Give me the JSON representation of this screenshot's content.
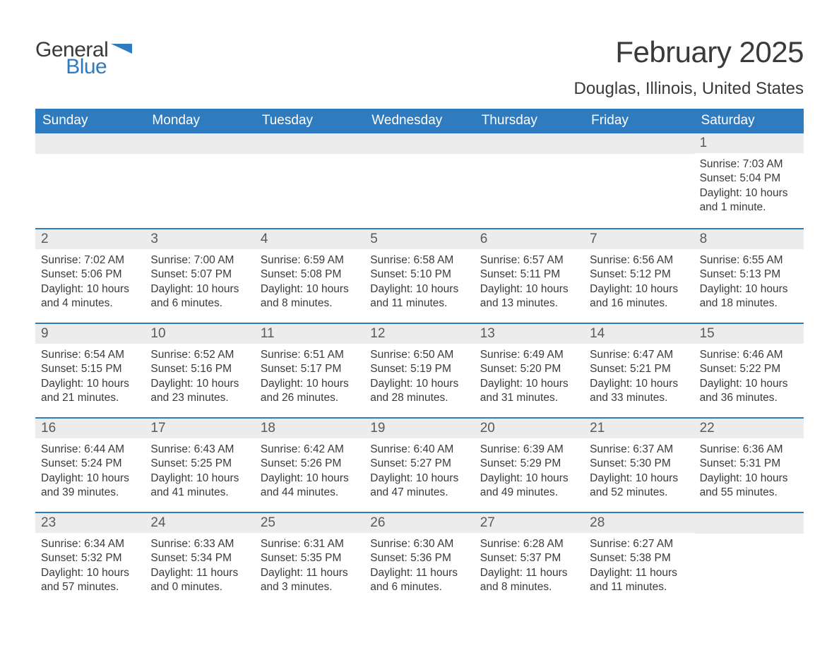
{
  "logo": {
    "line1": "General",
    "line2": "Blue",
    "icon_color": "#2f7bbf"
  },
  "title": "February 2025",
  "subtitle": "Douglas, Illinois, United States",
  "colors": {
    "header_bg": "#2f7bbf",
    "header_text": "#ffffff",
    "daynum_bg": "#ececec",
    "border": "#2f7bbf",
    "body_text": "#3a3a3a"
  },
  "weekdays": [
    "Sunday",
    "Monday",
    "Tuesday",
    "Wednesday",
    "Thursday",
    "Friday",
    "Saturday"
  ],
  "weeks": [
    [
      null,
      null,
      null,
      null,
      null,
      null,
      {
        "n": "1",
        "sunrise": "Sunrise: 7:03 AM",
        "sunset": "Sunset: 5:04 PM",
        "daylight": "Daylight: 10 hours and 1 minute."
      }
    ],
    [
      {
        "n": "2",
        "sunrise": "Sunrise: 7:02 AM",
        "sunset": "Sunset: 5:06 PM",
        "daylight": "Daylight: 10 hours and 4 minutes."
      },
      {
        "n": "3",
        "sunrise": "Sunrise: 7:00 AM",
        "sunset": "Sunset: 5:07 PM",
        "daylight": "Daylight: 10 hours and 6 minutes."
      },
      {
        "n": "4",
        "sunrise": "Sunrise: 6:59 AM",
        "sunset": "Sunset: 5:08 PM",
        "daylight": "Daylight: 10 hours and 8 minutes."
      },
      {
        "n": "5",
        "sunrise": "Sunrise: 6:58 AM",
        "sunset": "Sunset: 5:10 PM",
        "daylight": "Daylight: 10 hours and 11 minutes."
      },
      {
        "n": "6",
        "sunrise": "Sunrise: 6:57 AM",
        "sunset": "Sunset: 5:11 PM",
        "daylight": "Daylight: 10 hours and 13 minutes."
      },
      {
        "n": "7",
        "sunrise": "Sunrise: 6:56 AM",
        "sunset": "Sunset: 5:12 PM",
        "daylight": "Daylight: 10 hours and 16 minutes."
      },
      {
        "n": "8",
        "sunrise": "Sunrise: 6:55 AM",
        "sunset": "Sunset: 5:13 PM",
        "daylight": "Daylight: 10 hours and 18 minutes."
      }
    ],
    [
      {
        "n": "9",
        "sunrise": "Sunrise: 6:54 AM",
        "sunset": "Sunset: 5:15 PM",
        "daylight": "Daylight: 10 hours and 21 minutes."
      },
      {
        "n": "10",
        "sunrise": "Sunrise: 6:52 AM",
        "sunset": "Sunset: 5:16 PM",
        "daylight": "Daylight: 10 hours and 23 minutes."
      },
      {
        "n": "11",
        "sunrise": "Sunrise: 6:51 AM",
        "sunset": "Sunset: 5:17 PM",
        "daylight": "Daylight: 10 hours and 26 minutes."
      },
      {
        "n": "12",
        "sunrise": "Sunrise: 6:50 AM",
        "sunset": "Sunset: 5:19 PM",
        "daylight": "Daylight: 10 hours and 28 minutes."
      },
      {
        "n": "13",
        "sunrise": "Sunrise: 6:49 AM",
        "sunset": "Sunset: 5:20 PM",
        "daylight": "Daylight: 10 hours and 31 minutes."
      },
      {
        "n": "14",
        "sunrise": "Sunrise: 6:47 AM",
        "sunset": "Sunset: 5:21 PM",
        "daylight": "Daylight: 10 hours and 33 minutes."
      },
      {
        "n": "15",
        "sunrise": "Sunrise: 6:46 AM",
        "sunset": "Sunset: 5:22 PM",
        "daylight": "Daylight: 10 hours and 36 minutes."
      }
    ],
    [
      {
        "n": "16",
        "sunrise": "Sunrise: 6:44 AM",
        "sunset": "Sunset: 5:24 PM",
        "daylight": "Daylight: 10 hours and 39 minutes."
      },
      {
        "n": "17",
        "sunrise": "Sunrise: 6:43 AM",
        "sunset": "Sunset: 5:25 PM",
        "daylight": "Daylight: 10 hours and 41 minutes."
      },
      {
        "n": "18",
        "sunrise": "Sunrise: 6:42 AM",
        "sunset": "Sunset: 5:26 PM",
        "daylight": "Daylight: 10 hours and 44 minutes."
      },
      {
        "n": "19",
        "sunrise": "Sunrise: 6:40 AM",
        "sunset": "Sunset: 5:27 PM",
        "daylight": "Daylight: 10 hours and 47 minutes."
      },
      {
        "n": "20",
        "sunrise": "Sunrise: 6:39 AM",
        "sunset": "Sunset: 5:29 PM",
        "daylight": "Daylight: 10 hours and 49 minutes."
      },
      {
        "n": "21",
        "sunrise": "Sunrise: 6:37 AM",
        "sunset": "Sunset: 5:30 PM",
        "daylight": "Daylight: 10 hours and 52 minutes."
      },
      {
        "n": "22",
        "sunrise": "Sunrise: 6:36 AM",
        "sunset": "Sunset: 5:31 PM",
        "daylight": "Daylight: 10 hours and 55 minutes."
      }
    ],
    [
      {
        "n": "23",
        "sunrise": "Sunrise: 6:34 AM",
        "sunset": "Sunset: 5:32 PM",
        "daylight": "Daylight: 10 hours and 57 minutes."
      },
      {
        "n": "24",
        "sunrise": "Sunrise: 6:33 AM",
        "sunset": "Sunset: 5:34 PM",
        "daylight": "Daylight: 11 hours and 0 minutes."
      },
      {
        "n": "25",
        "sunrise": "Sunrise: 6:31 AM",
        "sunset": "Sunset: 5:35 PM",
        "daylight": "Daylight: 11 hours and 3 minutes."
      },
      {
        "n": "26",
        "sunrise": "Sunrise: 6:30 AM",
        "sunset": "Sunset: 5:36 PM",
        "daylight": "Daylight: 11 hours and 6 minutes."
      },
      {
        "n": "27",
        "sunrise": "Sunrise: 6:28 AM",
        "sunset": "Sunset: 5:37 PM",
        "daylight": "Daylight: 11 hours and 8 minutes."
      },
      {
        "n": "28",
        "sunrise": "Sunrise: 6:27 AM",
        "sunset": "Sunset: 5:38 PM",
        "daylight": "Daylight: 11 hours and 11 minutes."
      },
      null
    ]
  ]
}
